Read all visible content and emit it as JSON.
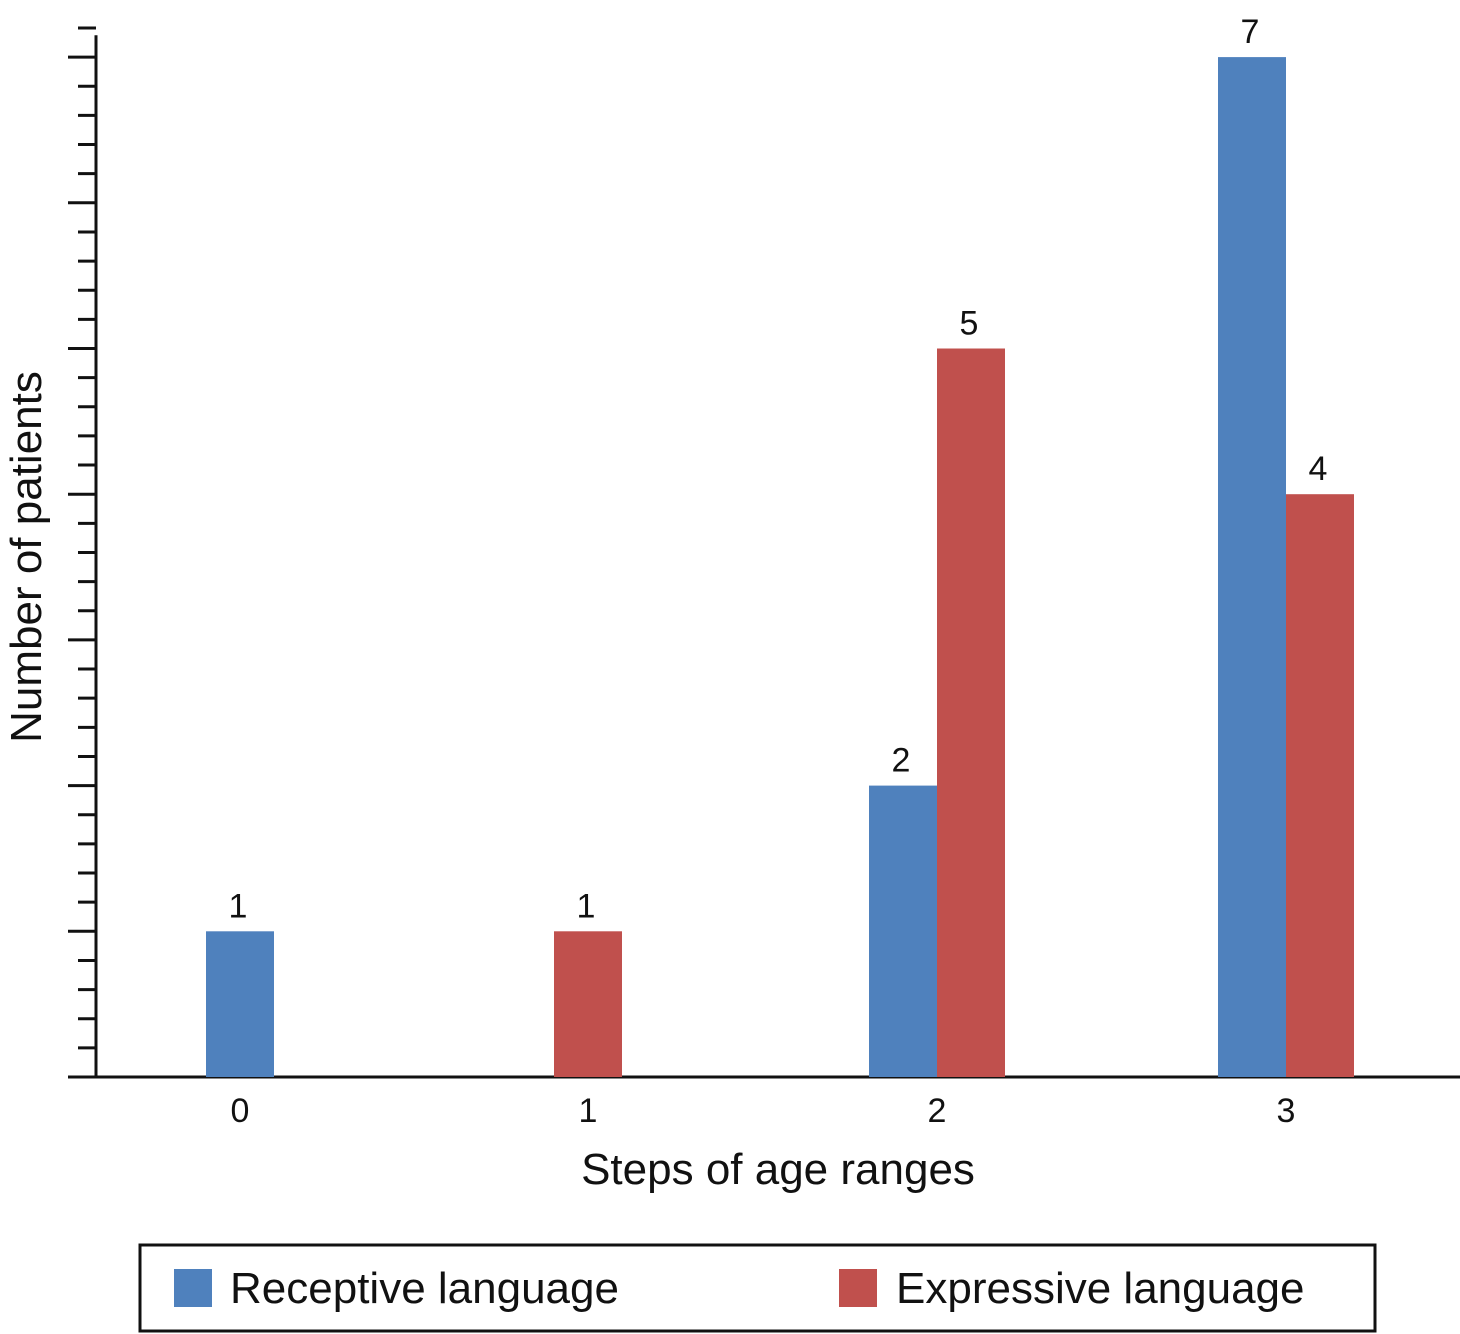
{
  "chart_data": {
    "type": "bar",
    "categories": [
      "0",
      "1",
      "2",
      "3"
    ],
    "series": [
      {
        "name": "Receptive language",
        "color": "#4f81bd",
        "values": [
          1,
          0,
          2,
          7
        ],
        "labels": [
          "1",
          "",
          "2",
          "7"
        ]
      },
      {
        "name": "Expressive language",
        "color": "#c0504d",
        "values": [
          0,
          1,
          5,
          4
        ],
        "labels": [
          "",
          "1",
          "5",
          "4"
        ]
      }
    ],
    "xlabel": "Steps of age ranges",
    "ylabel": "Number of patients",
    "ylim": [
      0,
      7.15
    ],
    "y_tick_labels_shown": false,
    "grid": false,
    "legend_position": "bottom"
  }
}
